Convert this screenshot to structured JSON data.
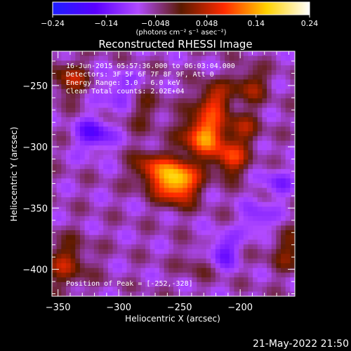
{
  "chart_data": {
    "type": "heatmap",
    "title": "Reconstructed RHESSI Image",
    "xlabel": "Heliocentric X (arcsec)",
    "ylabel": "Heliocentric Y (arcsec)",
    "xlim": [
      -355,
      -155
    ],
    "ylim": [
      -422,
      -222
    ],
    "x_ticks": [
      -350,
      -300,
      -250,
      -200
    ],
    "y_ticks": [
      -250,
      -300,
      -350,
      -400
    ],
    "x_tick_labels": [
      "−350",
      "−300",
      "−250",
      "−200"
    ],
    "y_tick_labels": [
      "−250",
      "−300",
      "−350",
      "−400"
    ],
    "colorbar": {
      "range": [
        -0.24,
        0.24
      ],
      "ticks": [
        -0.24,
        -0.14,
        -0.048,
        0.048,
        0.14,
        0.24
      ],
      "tick_labels": [
        "−0.24",
        "−0.14",
        "−0.048",
        "0.048",
        "0.14",
        "0.24"
      ],
      "units_label": "(photons cm⁻² s⁻¹ asec⁻²)",
      "colors": [
        "#1e1eff",
        "#5a00ff",
        "#b14aff",
        "#5a1a00",
        "#ff2a00",
        "#ffd200",
        "#ffffff"
      ]
    },
    "annotations": [
      "16-Jun-2015 05:57:36.000 to 06:03:04.000",
      "Detectors: 3F 5F 6F 7F 8F 9F, Att 0",
      "Energy Range: 3.0 - 6.0 keV",
      "Clean    Total counts: 2.02E+04"
    ],
    "peak_label": "Position of Peak = [-252,-328]",
    "peak": {
      "x": -252,
      "y": -328,
      "value": 0.24
    },
    "sources": [
      {
        "x": -252,
        "y": -328,
        "amplitude": 0.24,
        "sigma": 12
      },
      {
        "x": -230,
        "y": -290,
        "amplitude": 0.19,
        "sigma": 12
      },
      {
        "x": -222,
        "y": -262,
        "amplitude": 0.12,
        "sigma": 10
      },
      {
        "x": -208,
        "y": -310,
        "amplitude": 0.13,
        "sigma": 10
      },
      {
        "x": -198,
        "y": -285,
        "amplitude": 0.08,
        "sigma": 10
      },
      {
        "x": -192,
        "y": -250,
        "amplitude": 0.09,
        "sigma": 10
      },
      {
        "x": -275,
        "y": -318,
        "amplitude": 0.11,
        "sigma": 10
      },
      {
        "x": -280,
        "y": -270,
        "amplitude": 0.05,
        "sigma": 12
      },
      {
        "x": -340,
        "y": -245,
        "amplitude": 0.1,
        "sigma": 10
      },
      {
        "x": -345,
        "y": -395,
        "amplitude": 0.09,
        "sigma": 14
      },
      {
        "x": -160,
        "y": -385,
        "amplitude": 0.07,
        "sigma": 12
      },
      {
        "x": -235,
        "y": -395,
        "amplitude": 0.04,
        "sigma": 10
      },
      {
        "x": -320,
        "y": -290,
        "amplitude": -0.1,
        "sigma": 10
      },
      {
        "x": -300,
        "y": -255,
        "amplitude": -0.07,
        "sigma": 10
      },
      {
        "x": -215,
        "y": -385,
        "amplitude": -0.09,
        "sigma": 9
      },
      {
        "x": -185,
        "y": -360,
        "amplitude": -0.07,
        "sigma": 9
      },
      {
        "x": -170,
        "y": -330,
        "amplitude": -0.06,
        "sigma": 9
      }
    ],
    "background": -0.06
  },
  "footer": {
    "timestamp": "21-May-2022 21:50"
  }
}
